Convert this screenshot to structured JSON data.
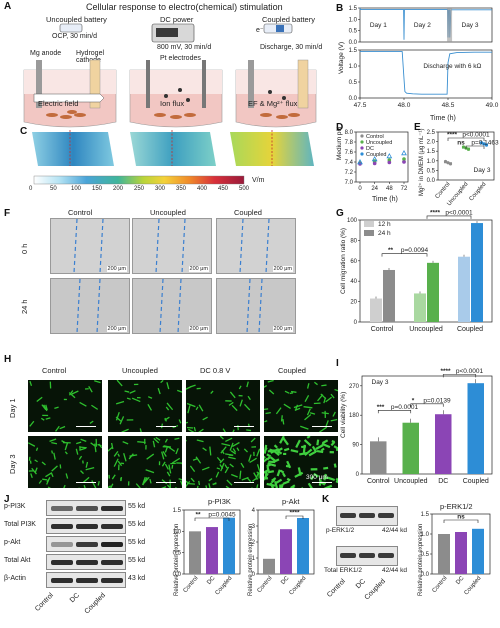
{
  "title": "Cellular response to electro(chemical) stimulation",
  "panels": {
    "A": {
      "letter": "A",
      "uncoupled_title": "Uncoupled battery",
      "uncoupled_sub": "OCP, 30 min/d",
      "mg_anode": "Mg anode",
      "hydrogel_cathode": "Hydrogel cathode",
      "electric_field": "Electric field",
      "dc_title": "DC power",
      "dc_sub": "800 mV, 30 min/d",
      "pt_electrodes": "Pt  electrodes",
      "ion_flux": "Ion flux",
      "coupled_title": "Coupled battery",
      "electron": "e⁻",
      "coupled_sub": "Discharge, 30 min/d",
      "ef_flux": "EF & Mg²⁺ flux"
    },
    "B": {
      "letter": "B",
      "ylabel": "Voltage (V)",
      "xlabel": "Time (h)",
      "day1": "Day 1",
      "day2": "Day 2",
      "day3": "Day 3",
      "annot": "Discharge with 6 kΩ"
    },
    "C": {
      "letter": "C",
      "unit": "V/m",
      "ticks": [
        "0",
        "50",
        "100",
        "150",
        "200",
        "250",
        "300",
        "350",
        "400",
        "450",
        "500"
      ]
    },
    "D": {
      "letter": "D",
      "ylabel": "Medium pH",
      "xlabel": "Time (h)",
      "legend": [
        "Control",
        "Uncoupled",
        "DC",
        "Coupled"
      ]
    },
    "E": {
      "letter": "E",
      "ylabel": "Mg²⁺ in DMEM (μg mL⁻¹)",
      "sig1": "****",
      "p1": "p<0.0001",
      "sig2": "ns",
      "p2": "p=0.1463",
      "day": "Day 3",
      "groups": [
        "Control",
        "Uncoupled",
        "Coupled"
      ]
    },
    "F": {
      "letter": "F",
      "cols": [
        "Control",
        "Uncoupled",
        "Coupled"
      ],
      "rows": [
        "0 h",
        "24 h"
      ],
      "scale": "200 μm"
    },
    "G": {
      "letter": "G",
      "ylabel": "Cell migration ratio (%)",
      "legend": [
        "12 h",
        "24 h"
      ],
      "sig1": "**",
      "p1": "p=0.0094",
      "sig2": "****",
      "p2": "p<0.0001",
      "groups": [
        "Control",
        "Uncoupled",
        "Coupled"
      ]
    },
    "H": {
      "letter": "H",
      "cols": [
        "Control",
        "Uncoupled",
        "DC 0.8 V",
        "Coupled"
      ],
      "rows": [
        "Day 1",
        "Day 3"
      ],
      "scale": "300 μm"
    },
    "I": {
      "letter": "I",
      "ylabel": "Cell viability (%)",
      "day": "Day 3",
      "sig1": "***",
      "p1": "p=0.0001",
      "sig2": "*",
      "p2": "p=0.0139",
      "sig3": "****",
      "p3": "p<0.0001",
      "groups": [
        "Control",
        "Uncoupled",
        "DC",
        "Coupled"
      ]
    },
    "J": {
      "letter": "J",
      "bands": [
        "p-PI3K",
        "Total  PI3K",
        "p-Akt",
        "Total  Akt",
        "β-Actin"
      ],
      "kd": [
        "55 kd",
        "55 kd",
        "55 kd",
        "55 kd",
        "43 kd"
      ],
      "lanes": [
        "Control",
        "DC",
        "Coupled"
      ],
      "chart1_title": "p-PI3K",
      "chart1_sig": "**",
      "chart1_p": "p=0.0045",
      "chart2_title": "p-Akt",
      "chart2_sig": "****",
      "ylabel": "Relative protein expression"
    },
    "K": {
      "letter": "K",
      "bands": [
        "p-ERK1/2",
        "Total  ERK1/2"
      ],
      "kd": [
        "42/44 kd",
        "42/44 kd"
      ],
      "lanes": [
        "Control",
        "DC",
        "Coupled"
      ],
      "chart_title": "p-ERK1/2",
      "sig": "ns",
      "ylabel": "Relative protein expression"
    }
  },
  "chart_data": [
    {
      "type": "line",
      "panel": "B-top",
      "ylabel": "Voltage (V)",
      "xlabel": "Time (h)",
      "ylim": [
        0.0,
        1.5
      ],
      "yticks": [
        "0.0",
        "0.5",
        "1.0",
        "1.5"
      ],
      "xticks": [
        "0",
        "24",
        "48",
        "72"
      ],
      "xlim": [
        0,
        72
      ],
      "series": [
        {
          "x": [
            0,
            0.2,
            23.8,
            24,
            24.2,
            47.8,
            48,
            48.3,
            48.8,
            49,
            49.5,
            71.8,
            72
          ],
          "y": [
            1.5,
            1.43,
            1.43,
            0.1,
            1.43,
            1.43,
            0.2,
            1.42,
            1.42,
            0.2,
            1.42,
            1.42,
            1.42
          ]
        }
      ]
    },
    {
      "type": "line",
      "panel": "B-bottom",
      "xlabel": "Time (h)",
      "xlim": [
        47.5,
        49.0
      ],
      "ylim": [
        0.0,
        1.5
      ],
      "yticks": [
        "0.0",
        "0.5",
        "1.0",
        "1.5"
      ],
      "xticks": [
        "47.5",
        "48.0",
        "48.5",
        "49.0"
      ],
      "series": [
        {
          "x": [
            47.5,
            47.98,
            48.0,
            48.01,
            48.03,
            48.1,
            48.2,
            48.49,
            48.5,
            48.52,
            48.6,
            48.8,
            49.0
          ],
          "y": [
            1.45,
            1.45,
            0.6,
            0.2,
            0.15,
            0.13,
            0.12,
            0.12,
            1.1,
            1.38,
            1.42,
            1.43,
            1.43
          ]
        }
      ]
    },
    {
      "type": "scatter",
      "panel": "D",
      "xlabel": "Time (h)",
      "ylabel": "Medium pH",
      "ylim": [
        7.0,
        8.0
      ],
      "yticks": [
        "7.0",
        "7.2",
        "7.4",
        "7.6",
        "7.8",
        "8.0"
      ],
      "xticks": [
        "0",
        "24",
        "48",
        "72"
      ],
      "x": [
        0,
        24,
        48,
        72
      ],
      "series": [
        {
          "name": "Control",
          "color": "#8c8c8c",
          "values": [
            7.38,
            7.39,
            7.4,
            7.41
          ]
        },
        {
          "name": "Uncoupled",
          "color": "#58b04c",
          "values": [
            7.38,
            7.42,
            7.44,
            7.46
          ]
        },
        {
          "name": "DC",
          "color": "#8b45b5",
          "values": [
            7.36,
            7.37,
            7.39,
            7.4
          ]
        },
        {
          "name": "Coupled",
          "color": "#2d8dd6",
          "values": [
            7.4,
            7.46,
            7.52,
            7.58
          ]
        }
      ]
    },
    {
      "type": "scatter",
      "panel": "E",
      "ylabel": "Mg²⁺ in DMEM (μg mL⁻¹)",
      "ylim": [
        0.0,
        2.5
      ],
      "yticks": [
        "0.0",
        "0.5",
        "1.0",
        "1.5",
        "2.0",
        "2.5"
      ],
      "categories": [
        "Control",
        "Uncoupled",
        "Coupled"
      ],
      "series": [
        {
          "colors": [
            "#8c8c8c",
            "#58b04c",
            "#2d8dd6"
          ],
          "values": [
            0.9,
            1.66,
            1.88
          ]
        }
      ]
    },
    {
      "type": "bar",
      "panel": "G",
      "ylabel": "Cell migration ratio (%)",
      "ylim": [
        0,
        100
      ],
      "yticks": [
        "0",
        "20",
        "40",
        "60",
        "80",
        "100"
      ],
      "categories": [
        "Control",
        "Uncoupled",
        "Coupled"
      ],
      "series": [
        {
          "name": "12 h",
          "colors": [
            "#cfcfcf",
            "#a9d8a0",
            "#a9cbea"
          ],
          "values": [
            23,
            28,
            64
          ]
        },
        {
          "name": "24 h",
          "colors": [
            "#8c8c8c",
            "#58b04c",
            "#2d8dd6"
          ],
          "values": [
            51,
            58,
            97
          ]
        }
      ]
    },
    {
      "type": "bar",
      "panel": "I",
      "ylabel": "Cell viability (%)",
      "ylim": [
        0,
        300
      ],
      "yticks": [
        "0",
        "90",
        "180",
        "270"
      ],
      "categories": [
        "Control",
        "Uncoupled",
        "DC",
        "Coupled"
      ],
      "series": [
        {
          "colors": [
            "#8c8c8c",
            "#58b04c",
            "#8b45b5",
            "#2d8dd6"
          ],
          "values": [
            100,
            157,
            183,
            278
          ]
        }
      ]
    },
    {
      "type": "bar",
      "panel": "J-pPI3K",
      "title": "p-PI3K",
      "ylabel": "Relative protein expression",
      "ylim": [
        0,
        1.5
      ],
      "yticks": [
        "0.0",
        "0.5",
        "1.0",
        "1.5"
      ],
      "categories": [
        "Control",
        "DC",
        "Coupled"
      ],
      "series": [
        {
          "colors": [
            "#8c8c8c",
            "#8b45b5",
            "#2d8dd6"
          ],
          "values": [
            1.0,
            1.1,
            1.32
          ]
        }
      ]
    },
    {
      "type": "bar",
      "panel": "J-pAkt",
      "title": "p-Akt",
      "ylabel": "Relative protein expression",
      "ylim": [
        0,
        4
      ],
      "yticks": [
        "0",
        "1",
        "2",
        "3",
        "4"
      ],
      "categories": [
        "Control",
        "DC",
        "Coupled"
      ],
      "series": [
        {
          "colors": [
            "#8c8c8c",
            "#8b45b5",
            "#2d8dd6"
          ],
          "values": [
            0.95,
            2.8,
            3.5
          ]
        }
      ]
    },
    {
      "type": "bar",
      "panel": "K",
      "title": "p-ERK1/2",
      "ylabel": "Relative protein expression",
      "ylim": [
        0,
        1.5
      ],
      "yticks": [
        "0.0",
        "0.5",
        "1.0",
        "1.5"
      ],
      "categories": [
        "Control",
        "DC",
        "Coupled"
      ],
      "series": [
        {
          "colors": [
            "#8c8c8c",
            "#8b45b5",
            "#2d8dd6"
          ],
          "values": [
            1.0,
            1.05,
            1.13
          ]
        }
      ]
    }
  ]
}
